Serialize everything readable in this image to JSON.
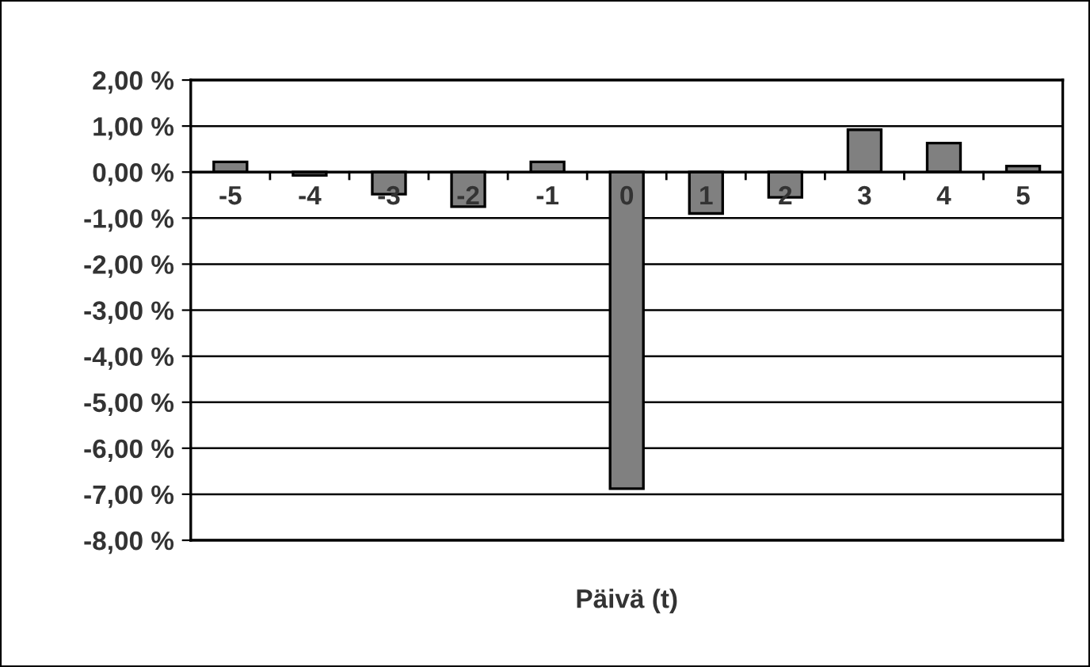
{
  "chart_data": {
    "type": "bar",
    "xlabel": "Päivä (t)",
    "categories": [
      "-5",
      "-4",
      "-3",
      "-2",
      "-1",
      "0",
      "1",
      "2",
      "3",
      "4",
      "5"
    ],
    "series": [
      {
        "color": "#808080",
        "values": [
          0.22,
          -0.07,
          -0.48,
          -0.75,
          0.22,
          -6.88,
          -0.9,
          -0.55,
          0.92,
          0.63,
          0.13
        ]
      }
    ],
    "ylim": [
      -8,
      2
    ],
    "yticks": [
      {
        "value": 2,
        "label": "2,00 %"
      },
      {
        "value": 1,
        "label": "1,00 %"
      },
      {
        "value": 0,
        "label": "0,00 %"
      },
      {
        "value": -1,
        "label": "-1,00 %"
      },
      {
        "value": -2,
        "label": "-2,00 %"
      },
      {
        "value": -3,
        "label": "-3,00 %"
      },
      {
        "value": -4,
        "label": "-4,00 %"
      },
      {
        "value": -5,
        "label": "-5,00 %"
      },
      {
        "value": -6,
        "label": "-6,00 %"
      },
      {
        "value": -7,
        "label": "-7,00 %"
      },
      {
        "value": -8,
        "label": "-8,00 %"
      }
    ],
    "grid": "y"
  }
}
